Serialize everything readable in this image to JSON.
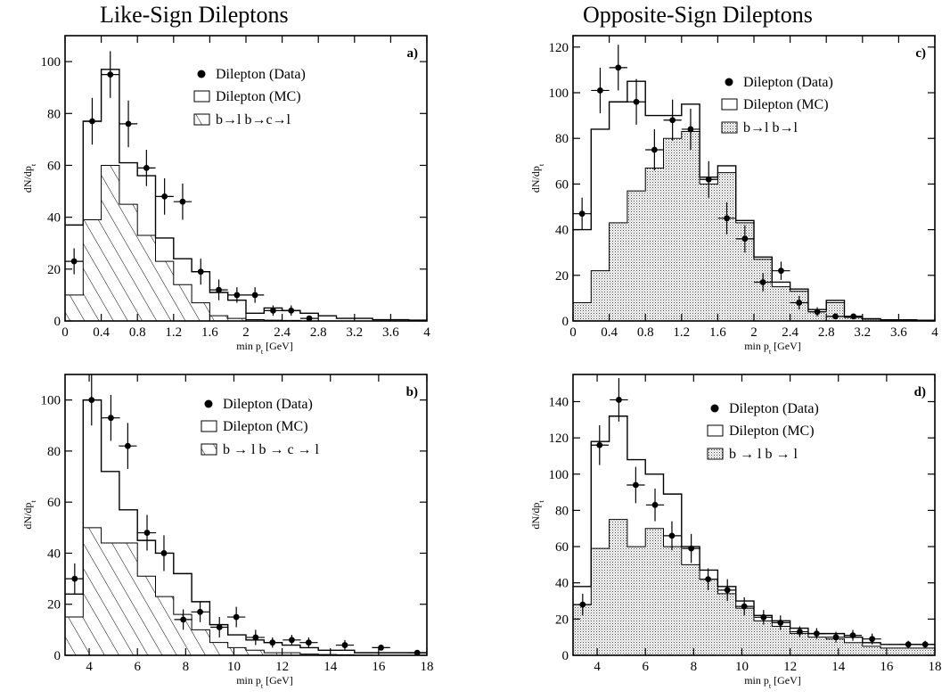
{
  "titles": {
    "left": "Like-Sign Dileptons",
    "right": "Opposite-Sign Dileptons"
  },
  "chart_data": [
    {
      "type": "histogram",
      "label": "a)",
      "xlabel": "min p_t [GeV]",
      "ylabel": "dN/dp_t",
      "xlim": [
        0,
        4
      ],
      "ylim": [
        0,
        110
      ],
      "xticks": [
        0,
        0.4,
        0.8,
        1.2,
        1.6,
        2,
        2.4,
        2.8,
        3.2,
        3.6,
        4
      ],
      "yticks": [
        0,
        20,
        40,
        60,
        80,
        100
      ],
      "legend": {
        "data": "Dilepton (Data)",
        "mc": "Dilepton (MC)",
        "bg": "b→l  b→c→l"
      },
      "bg_style": "hatch",
      "bin_edges": [
        0,
        0.2,
        0.4,
        0.6,
        0.8,
        1.0,
        1.2,
        1.4,
        1.6,
        1.8,
        2.0,
        2.2,
        2.4,
        2.6,
        2.8,
        3.0,
        3.2,
        3.4,
        3.6,
        3.8,
        4.0
      ],
      "mc": [
        37,
        77,
        97,
        61,
        56,
        32,
        24,
        19,
        11,
        8,
        3,
        5,
        4,
        3,
        2,
        1,
        1,
        0.5,
        0.5,
        0.3
      ],
      "bg": [
        10,
        39,
        60,
        45,
        33,
        23,
        14,
        7,
        2,
        1,
        0.5,
        0.3,
        0.2,
        0,
        0,
        0,
        0,
        0,
        0,
        0
      ],
      "data_points": [
        {
          "x": 0.1,
          "y": 23,
          "err": 5
        },
        {
          "x": 0.3,
          "y": 77,
          "err": 9
        },
        {
          "x": 0.5,
          "y": 95,
          "err": 9
        },
        {
          "x": 0.7,
          "y": 76,
          "err": 9
        },
        {
          "x": 0.9,
          "y": 59,
          "err": 7
        },
        {
          "x": 1.1,
          "y": 48,
          "err": 7
        },
        {
          "x": 1.3,
          "y": 46,
          "err": 7
        },
        {
          "x": 1.5,
          "y": 19,
          "err": 5
        },
        {
          "x": 1.7,
          "y": 12,
          "err": 4
        },
        {
          "x": 1.9,
          "y": 10,
          "err": 3
        },
        {
          "x": 2.1,
          "y": 10,
          "err": 3
        },
        {
          "x": 2.3,
          "y": 4,
          "err": 2
        },
        {
          "x": 2.5,
          "y": 4,
          "err": 2
        },
        {
          "x": 2.7,
          "y": 1,
          "err": 1
        }
      ]
    },
    {
      "type": "histogram",
      "label": "c)",
      "xlabel": "min p_t [GeV]",
      "ylabel": "dN/dp_t",
      "xlim": [
        0,
        4
      ],
      "ylim": [
        0,
        125
      ],
      "xticks": [
        0,
        0.4,
        0.8,
        1.2,
        1.6,
        2,
        2.4,
        2.8,
        3.2,
        3.6,
        4
      ],
      "yticks": [
        0,
        20,
        40,
        60,
        80,
        100,
        120
      ],
      "legend": {
        "data": "Dilepton (Data)",
        "mc": "Dilepton (MC)",
        "bg": "b→l  b→l"
      },
      "bg_style": "dots",
      "bin_edges": [
        0,
        0.2,
        0.4,
        0.6,
        0.8,
        1.0,
        1.2,
        1.4,
        1.6,
        1.8,
        2.0,
        2.2,
        2.4,
        2.6,
        2.8,
        3.0,
        3.2,
        3.4,
        3.6,
        3.8,
        4.0
      ],
      "mc": [
        40,
        84,
        96,
        105,
        90,
        90,
        95,
        63,
        68,
        44,
        28,
        17,
        14,
        5,
        9,
        2,
        1,
        0.5,
        0.5,
        0.3
      ],
      "bg": [
        8,
        22,
        43,
        57,
        67,
        80,
        83,
        60,
        65,
        43,
        27,
        15,
        13,
        4,
        8,
        1.5,
        0.8,
        0.3,
        0.3,
        0.1
      ],
      "data_points": [
        {
          "x": 0.1,
          "y": 47,
          "err": 7
        },
        {
          "x": 0.3,
          "y": 101,
          "err": 10
        },
        {
          "x": 0.5,
          "y": 111,
          "err": 10
        },
        {
          "x": 0.7,
          "y": 96,
          "err": 10
        },
        {
          "x": 0.9,
          "y": 75,
          "err": 9
        },
        {
          "x": 1.1,
          "y": 88,
          "err": 9
        },
        {
          "x": 1.3,
          "y": 84,
          "err": 9
        },
        {
          "x": 1.5,
          "y": 62,
          "err": 8
        },
        {
          "x": 1.7,
          "y": 45,
          "err": 7
        },
        {
          "x": 1.9,
          "y": 36,
          "err": 6
        },
        {
          "x": 2.1,
          "y": 17,
          "err": 4
        },
        {
          "x": 2.3,
          "y": 22,
          "err": 4
        },
        {
          "x": 2.5,
          "y": 8,
          "err": 3
        },
        {
          "x": 2.7,
          "y": 4,
          "err": 2
        },
        {
          "x": 2.9,
          "y": 2,
          "err": 1
        },
        {
          "x": 3.1,
          "y": 2,
          "err": 1
        }
      ]
    },
    {
      "type": "histogram",
      "label": "b)",
      "xlabel": "min p_t [GeV]",
      "ylabel": "dN/dp_t",
      "xlim": [
        3,
        18
      ],
      "ylim": [
        0,
        110
      ],
      "xticks": [
        4,
        6,
        8,
        10,
        12,
        14,
        16,
        18
      ],
      "yticks": [
        0,
        20,
        40,
        60,
        80,
        100
      ],
      "legend": {
        "data": "Dilepton (Data)",
        "mc": "Dilepton (MC)",
        "bg": "b → l   b → c → l"
      },
      "bg_style": "hatch",
      "bin_edges": [
        3,
        3.75,
        4.5,
        5.25,
        6,
        6.75,
        7.5,
        8.25,
        9,
        9.75,
        10.5,
        11.25,
        12,
        12.75,
        13.5,
        14.25,
        15,
        15.75,
        16.5,
        17.25,
        18
      ],
      "mc": [
        24,
        100,
        72,
        57,
        45,
        40,
        32,
        21,
        12,
        8,
        6,
        5,
        4,
        3,
        2,
        2,
        1,
        1,
        1,
        1
      ],
      "bg": [
        15,
        50,
        44,
        44,
        31,
        23,
        16,
        10,
        5,
        3,
        2,
        1,
        1,
        0.5,
        0.3,
        0.2,
        0.1,
        0,
        0,
        0
      ],
      "data_points": [
        {
          "x": 3.4,
          "y": 30,
          "err": 6
        },
        {
          "x": 4.1,
          "y": 100,
          "err": 10
        },
        {
          "x": 4.9,
          "y": 93,
          "err": 9
        },
        {
          "x": 5.6,
          "y": 82,
          "err": 9
        },
        {
          "x": 6.4,
          "y": 48,
          "err": 7
        },
        {
          "x": 7.1,
          "y": 40,
          "err": 7
        },
        {
          "x": 7.9,
          "y": 14,
          "err": 4
        },
        {
          "x": 8.6,
          "y": 17,
          "err": 4
        },
        {
          "x": 9.4,
          "y": 11,
          "err": 4
        },
        {
          "x": 10.1,
          "y": 15,
          "err": 4
        },
        {
          "x": 10.9,
          "y": 7,
          "err": 3
        },
        {
          "x": 11.6,
          "y": 5,
          "err": 2
        },
        {
          "x": 12.4,
          "y": 6,
          "err": 2
        },
        {
          "x": 13.1,
          "y": 5,
          "err": 2
        },
        {
          "x": 14.6,
          "y": 4,
          "err": 2
        },
        {
          "x": 16.1,
          "y": 3,
          "err": 1
        },
        {
          "x": 17.6,
          "y": 1,
          "err": 1
        }
      ]
    },
    {
      "type": "histogram",
      "label": "d)",
      "xlabel": "min p_t [GeV]",
      "ylabel": "dN/dp_t",
      "xlim": [
        3,
        18
      ],
      "ylim": [
        0,
        155
      ],
      "xticks": [
        4,
        6,
        8,
        10,
        12,
        14,
        16,
        18
      ],
      "yticks": [
        0,
        20,
        40,
        60,
        80,
        100,
        120,
        140
      ],
      "legend": {
        "data": "Dilepton (Data)",
        "mc": "Dilepton (MC)",
        "bg": "b → l    b → l"
      },
      "bg_style": "dots",
      "bin_edges": [
        3,
        3.75,
        4.5,
        5.25,
        6,
        6.75,
        7.5,
        8.25,
        9,
        9.75,
        10.5,
        11.25,
        12,
        12.75,
        13.5,
        14.25,
        15,
        15.75,
        16.5,
        17.25,
        18
      ],
      "mc": [
        38,
        118,
        132,
        108,
        100,
        89,
        60,
        47,
        38,
        30,
        22,
        19,
        15,
        12,
        12,
        10,
        7,
        6,
        6,
        6
      ],
      "bg": [
        28,
        59,
        75,
        60,
        70,
        60,
        50,
        42,
        34,
        26,
        19,
        16,
        12,
        10,
        9,
        7,
        5,
        4,
        4,
        4
      ],
      "data_points": [
        {
          "x": 3.4,
          "y": 28,
          "err": 6
        },
        {
          "x": 4.1,
          "y": 116,
          "err": 11
        },
        {
          "x": 4.9,
          "y": 141,
          "err": 12
        },
        {
          "x": 5.6,
          "y": 94,
          "err": 10
        },
        {
          "x": 6.4,
          "y": 83,
          "err": 9
        },
        {
          "x": 7.1,
          "y": 66,
          "err": 8
        },
        {
          "x": 7.9,
          "y": 59,
          "err": 8
        },
        {
          "x": 8.6,
          "y": 42,
          "err": 6
        },
        {
          "x": 9.4,
          "y": 36,
          "err": 6
        },
        {
          "x": 10.1,
          "y": 27,
          "err": 5
        },
        {
          "x": 10.9,
          "y": 21,
          "err": 4
        },
        {
          "x": 11.6,
          "y": 18,
          "err": 4
        },
        {
          "x": 12.4,
          "y": 13,
          "err": 3
        },
        {
          "x": 13.1,
          "y": 12,
          "err": 3
        },
        {
          "x": 13.9,
          "y": 10,
          "err": 3
        },
        {
          "x": 14.6,
          "y": 11,
          "err": 3
        },
        {
          "x": 15.4,
          "y": 9,
          "err": 3
        },
        {
          "x": 16.9,
          "y": 6,
          "err": 2
        },
        {
          "x": 17.6,
          "y": 6,
          "err": 2
        }
      ]
    }
  ]
}
